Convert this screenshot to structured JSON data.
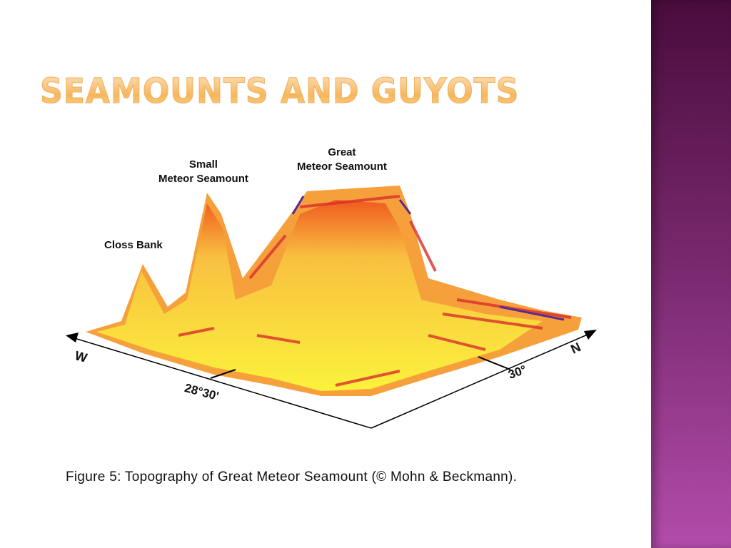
{
  "slide": {
    "title": "SEAMOUNTS AND GUYOTS",
    "caption": "Figure 5: Topography of Great Meteor Seamount (© Mohn & Beckmann).",
    "accent_color": "#f6b75a",
    "sidebar_color": "#7a2a70"
  },
  "figure": {
    "labels": {
      "great": "Great\nMeteor Seamount",
      "small": "Small\nMeteor Seamount",
      "closs": "Closs Bank",
      "west": "W",
      "north": "N",
      "lon": "28°30'",
      "lat": "30°"
    }
  }
}
